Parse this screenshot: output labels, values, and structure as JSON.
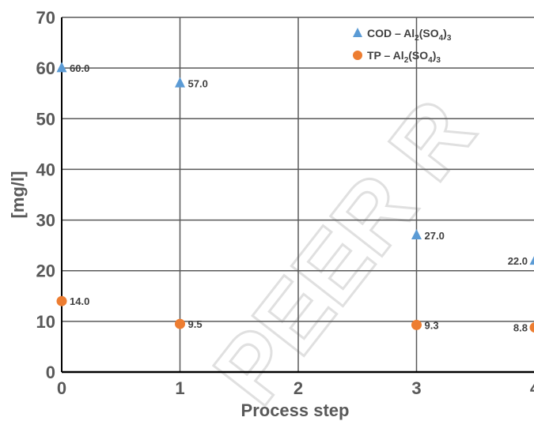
{
  "chart_data": {
    "type": "scatter",
    "title": "",
    "xlabel": "Process step",
    "ylabel": "[mg/l]",
    "xlim": [
      0,
      4
    ],
    "ylim": [
      0,
      70
    ],
    "xticks": [
      "0",
      "1",
      "2",
      "3",
      "4"
    ],
    "yticks": [
      "0",
      "10",
      "20",
      "30",
      "40",
      "50",
      "60",
      "70"
    ],
    "grid": true,
    "legend_position": "top-right",
    "series": [
      {
        "name_parts": [
          "COD – Al",
          "2",
          "(SO",
          "4",
          ")",
          "3"
        ],
        "marker": "triangle",
        "color": "#5b9bd5",
        "points": [
          {
            "x": 0,
            "y": 60.0,
            "label": "60.0"
          },
          {
            "x": 1,
            "y": 57.0,
            "label": "57.0"
          },
          {
            "x": 3,
            "y": 27.0,
            "label": "27.0"
          },
          {
            "x": 4,
            "y": 22.0,
            "label": "22.0"
          }
        ]
      },
      {
        "name_parts": [
          "TP – Al",
          "2",
          "(SO",
          "4",
          ")",
          "3"
        ],
        "marker": "circle",
        "color": "#ed7d31",
        "points": [
          {
            "x": 0,
            "y": 14.0,
            "label": "14.0"
          },
          {
            "x": 1,
            "y": 9.5,
            "label": "9.5"
          },
          {
            "x": 3,
            "y": 9.3,
            "label": "9.3"
          },
          {
            "x": 4,
            "y": 8.8,
            "label": "8.8"
          }
        ]
      }
    ]
  },
  "watermark_text": "PEER R"
}
